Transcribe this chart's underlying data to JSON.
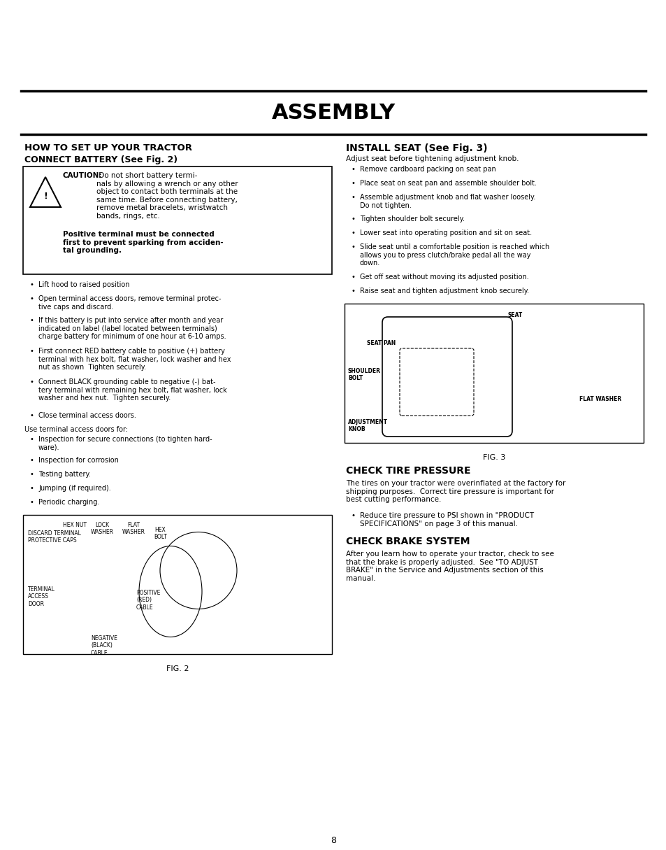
{
  "bg_color": "#ffffff",
  "title": "ASSEMBLY",
  "page_number": "8",
  "section1_title": "HOW TO SET UP YOUR TRACTOR",
  "section1_sub": "CONNECT BATTERY (See Fig. 2)",
  "caution_title": "CAUTION:",
  "caution_body": " Do not short battery termi-\nnals by allowing a wrench or any other\nobject to contact both terminals at the\nsame time. Before connecting battery,\nremove metal bracelets, wristwatch\nbands, rings, etc.",
  "caution_text2": "Positive terminal must be connected\nfirst to prevent sparking from acciden-\ntal grounding.",
  "left_bullets": [
    "Lift hood to raised position",
    "Open terminal access doors, remove terminal protec-\ntive caps and discard.",
    "If this battery is put into service after month and year\nindicated on label (label located between terminals)\ncharge battery for minimum of one hour at 6-10 amps.",
    "First connect RED battery cable to positive (+) battery\nterminal with hex bolt, flat washer, lock washer and hex\nnut as shown  Tighten securely.",
    "Connect BLACK grounding cable to negative (-) bat-\ntery terminal with remaining hex bolt, flat washer, lock\nwasher and hex nut.  Tighten securely.",
    "Close terminal access doors."
  ],
  "use_terminal_text": "Use terminal access doors for:",
  "use_terminal_bullets": [
    "Inspection for secure connections (to tighten hard-\nware).",
    "Inspection for corrosion",
    "Testing battery.",
    "Jumping (if required).",
    "Periodic charging."
  ],
  "fig2_label": "FIG. 2",
  "right_section1_title": "INSTALL SEAT (See Fig. 3)",
  "right_intro": "Adjust seat before tightening adjustment knob.",
  "right_bullets": [
    "Remove cardboard packing on seat pan",
    "Place seat on seat pan and assemble shoulder bolt.",
    "Assemble adjustment knob and flat washer loosely.\nDo not tighten.",
    "Tighten shoulder bolt securely.",
    "Lower seat into operating position and sit on seat.",
    "Slide seat until a comfortable position is reached which\nallows you to press clutch/brake pedal all the way\ndown.",
    "Get off seat without moving its adjusted position.",
    "Raise seat and tighten adjustment knob securely."
  ],
  "fig3_label": "FIG. 3",
  "section_tire_title": "CHECK TIRE PRESSURE",
  "tire_text": "The tires on your tractor were overinflated at the factory for\nshipping purposes.  Correct tire pressure is important for\nbest cutting performance.",
  "tire_bullet": "Reduce tire pressure to PSI shown in \"PRODUCT\nSPECIFICATIONS\" on page 3 of this manual.",
  "section_brake_title": "CHECK BRAKE SYSTEM",
  "brake_text": "After you learn how to operate your tractor, check to see\nthat the brake is properly adjusted.  See \"TO ADJUST\nBRAKE\" in the Service and Adjustments section of this\nmanual."
}
